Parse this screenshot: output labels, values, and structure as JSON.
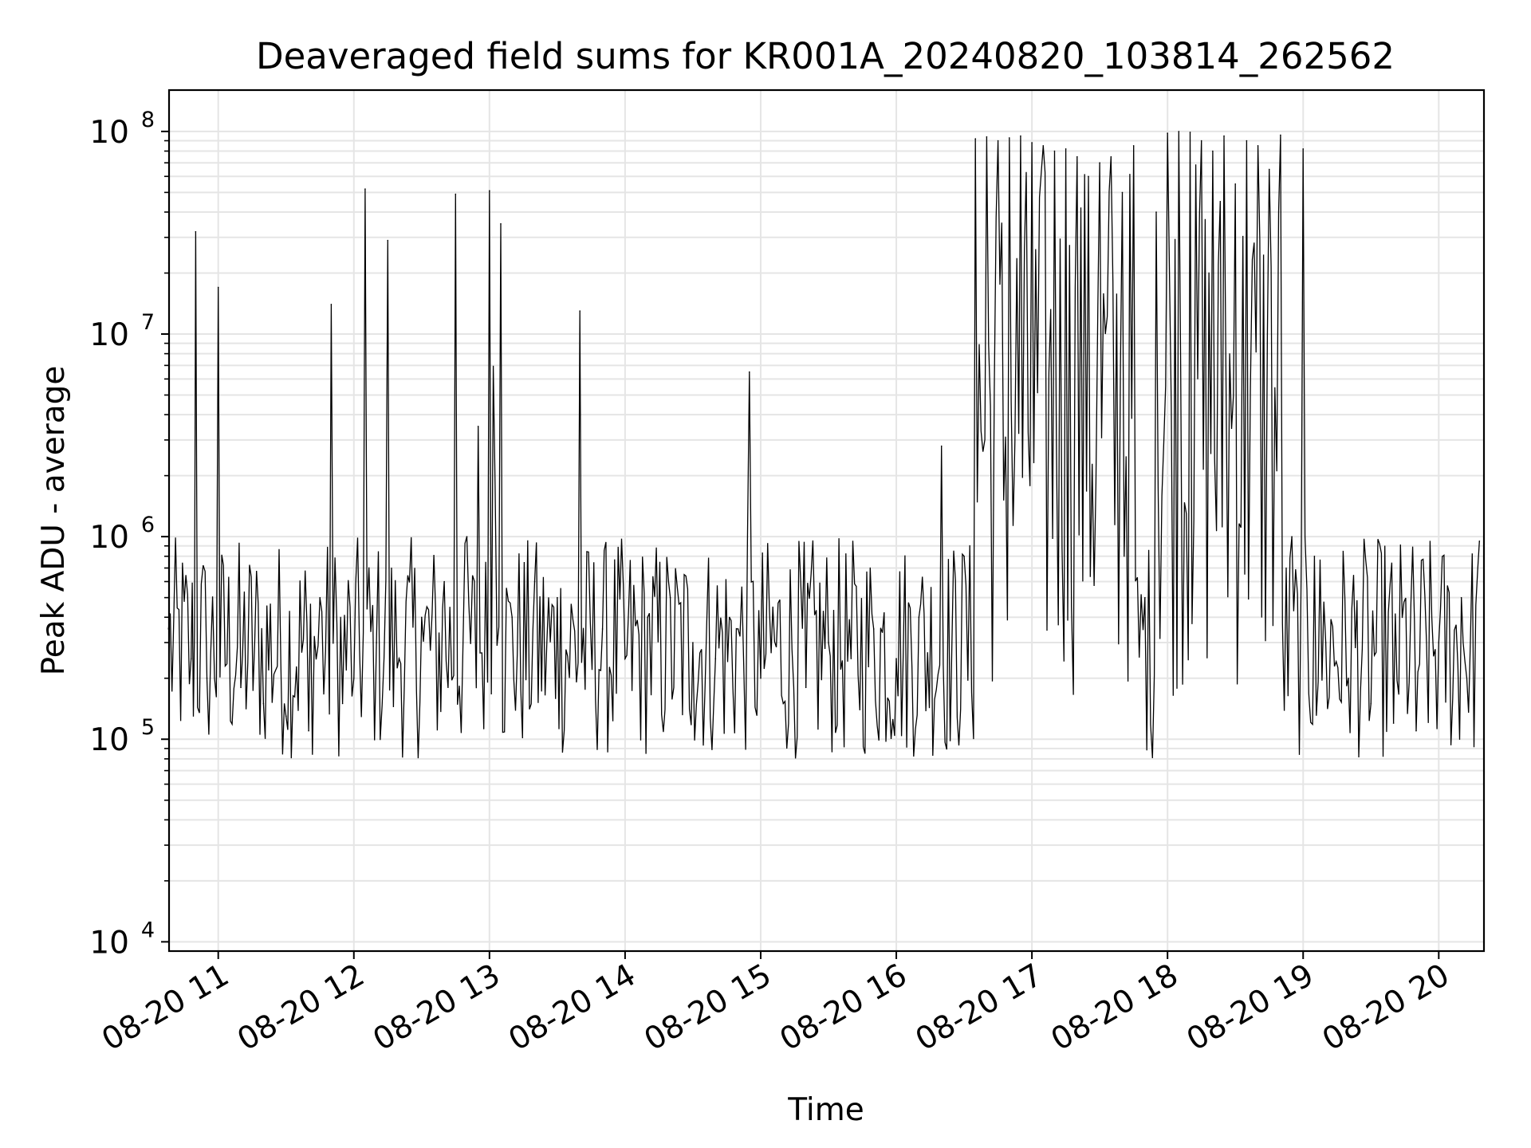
{
  "chart_data": {
    "type": "line",
    "title": "Deaveraged field sums for KR001A_20240820_103814_262562",
    "xlabel": "Time",
    "ylabel": "Peak ADU - average",
    "yscale": "log",
    "ylim": [
      9000,
      160000000
    ],
    "xlim": [
      "2024-08-20 10:38:14",
      "2024-08-20 20:20:00"
    ],
    "grid": true,
    "line_color": "#000000",
    "x_ticks": [
      {
        "value": "2024-08-20 11:00",
        "label": "08-20 11"
      },
      {
        "value": "2024-08-20 12:00",
        "label": "08-20 12"
      },
      {
        "value": "2024-08-20 13:00",
        "label": "08-20 13"
      },
      {
        "value": "2024-08-20 14:00",
        "label": "08-20 14"
      },
      {
        "value": "2024-08-20 15:00",
        "label": "08-20 15"
      },
      {
        "value": "2024-08-20 16:00",
        "label": "08-20 16"
      },
      {
        "value": "2024-08-20 17:00",
        "label": "08-20 17"
      },
      {
        "value": "2024-08-20 18:00",
        "label": "08-20 18"
      },
      {
        "value": "2024-08-20 19:00",
        "label": "08-20 19"
      },
      {
        "value": "2024-08-20 20:00",
        "label": "08-20 20"
      }
    ],
    "y_ticks": [
      {
        "value": 10000,
        "base": "10",
        "exp": "4"
      },
      {
        "value": 100000,
        "base": "10",
        "exp": "5"
      },
      {
        "value": 1000000,
        "base": "10",
        "exp": "6"
      },
      {
        "value": 10000000,
        "base": "10",
        "exp": "7"
      },
      {
        "value": 100000000,
        "base": "10",
        "exp": "8"
      }
    ],
    "series": [
      {
        "x": [
          "2024-08-20 10:38",
          "2024-08-20 10:48",
          "2024-08-20 10:50",
          "2024-08-20 10:55",
          "2024-08-20 11:00",
          "2024-08-20 11:10",
          "2024-08-20 11:20",
          "2024-08-20 11:30",
          "2024-08-20 11:40",
          "2024-08-20 11:45",
          "2024-08-20 11:50",
          "2024-08-20 11:55",
          "2024-08-20 12:00",
          "2024-08-20 12:05",
          "2024-08-20 12:10",
          "2024-08-20 12:15",
          "2024-08-20 12:20",
          "2024-08-20 12:30",
          "2024-08-20 12:40",
          "2024-08-20 12:45",
          "2024-08-20 12:50",
          "2024-08-20 12:55",
          "2024-08-20 13:00",
          "2024-08-20 13:05",
          "2024-08-20 13:10",
          "2024-08-20 13:20",
          "2024-08-20 13:30",
          "2024-08-20 13:40",
          "2024-08-20 13:50",
          "2024-08-20 14:00",
          "2024-08-20 14:10",
          "2024-08-20 14:20",
          "2024-08-20 14:30",
          "2024-08-20 14:40",
          "2024-08-20 14:50",
          "2024-08-20 14:55",
          "2024-08-20 15:00",
          "2024-08-20 15:10",
          "2024-08-20 15:20",
          "2024-08-20 15:30",
          "2024-08-20 15:40",
          "2024-08-20 15:50",
          "2024-08-20 16:00",
          "2024-08-20 16:10",
          "2024-08-20 16:20",
          "2024-08-20 16:30",
          "2024-08-20 16:35",
          "2024-08-20 16:40",
          "2024-08-20 16:45",
          "2024-08-20 16:50",
          "2024-08-20 16:55",
          "2024-08-20 17:00",
          "2024-08-20 17:05",
          "2024-08-20 17:10",
          "2024-08-20 17:15",
          "2024-08-20 17:20",
          "2024-08-20 17:25",
          "2024-08-20 17:30",
          "2024-08-20 17:35",
          "2024-08-20 17:40",
          "2024-08-20 17:45",
          "2024-08-20 17:50",
          "2024-08-20 17:55",
          "2024-08-20 18:00",
          "2024-08-20 18:05",
          "2024-08-20 18:10",
          "2024-08-20 18:15",
          "2024-08-20 18:20",
          "2024-08-20 18:25",
          "2024-08-20 18:30",
          "2024-08-20 18:35",
          "2024-08-20 18:40",
          "2024-08-20 18:45",
          "2024-08-20 18:50",
          "2024-08-20 18:55",
          "2024-08-20 19:00",
          "2024-08-20 19:05",
          "2024-08-20 19:10",
          "2024-08-20 19:20",
          "2024-08-20 19:30",
          "2024-08-20 19:40",
          "2024-08-20 19:50",
          "2024-08-20 20:00",
          "2024-08-20 20:10",
          "2024-08-20 20:18"
        ],
        "y": [
          350000,
          250000,
          32000000,
          200000,
          17000000,
          180000,
          150000,
          130000,
          110000,
          500000,
          14000000,
          150000,
          200000,
          52000000,
          300000,
          29000000,
          250000,
          400000,
          600000,
          49000000,
          1000000,
          3500000,
          51000000,
          35000000,
          400000,
          600000,
          500000,
          13000000,
          350000,
          250000,
          400000,
          500000,
          300000,
          250000,
          350000,
          6500000,
          200000,
          150000,
          180000,
          300000,
          250000,
          350000,
          250000,
          400000,
          2800000,
          800000,
          92000000,
          94000000,
          90000000,
          93000000,
          95000000,
          88000000,
          85000000,
          80000000,
          82000000,
          75000000,
          60000000,
          70000000,
          75000000,
          50000000,
          85000000,
          500000,
          40000000,
          98000000,
          100000000,
          99000000,
          90000000,
          80000000,
          95000000,
          55000000,
          90000000,
          85000000,
          65000000,
          96000000,
          1000000,
          82000000,
          800000,
          300000,
          200000,
          150000,
          120000,
          110000,
          300000,
          500000,
          950000
        ]
      }
    ]
  }
}
